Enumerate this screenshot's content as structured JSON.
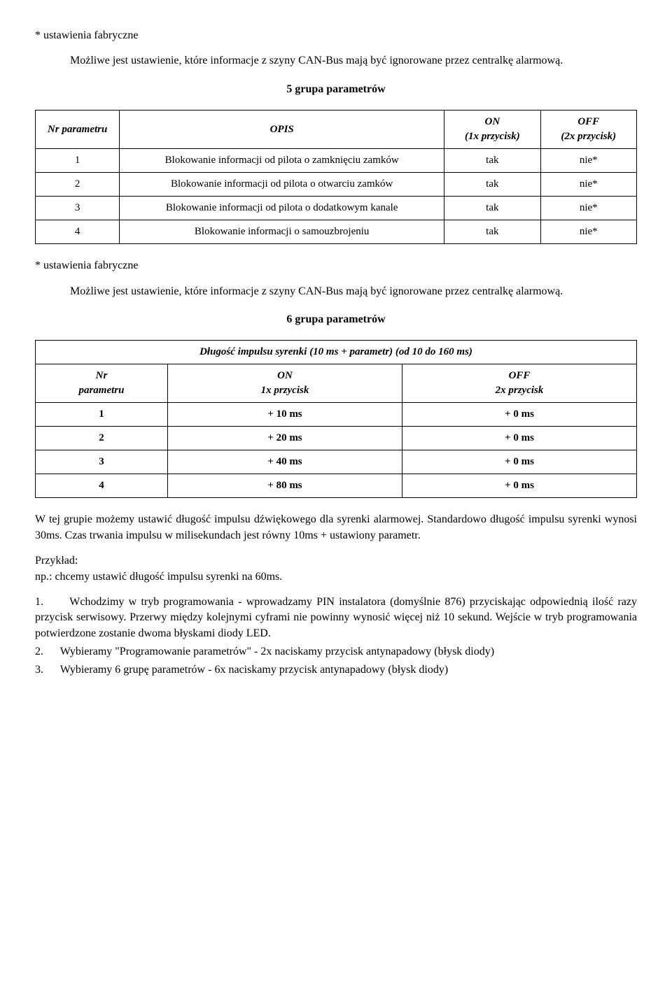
{
  "intro": {
    "fact_settings": "* ustawienia fabryczne",
    "possible": "Możliwe jest ustawienie, które informacje z szyny CAN-Bus mają być ignorowane przez centralkę alarmową."
  },
  "group5": {
    "title": "5 grupa parametrów",
    "header": {
      "nr": "Nr parametru",
      "opis": "OPIS",
      "on": "ON",
      "on_sub": "(1x przycisk)",
      "off": "OFF",
      "off_sub": "(2x przycisk)"
    },
    "rows": [
      {
        "nr": "1",
        "opis": "Blokowanie informacji od pilota o zamknięciu zamków",
        "on": "tak",
        "off": "nie*"
      },
      {
        "nr": "2",
        "opis": "Blokowanie informacji od pilota o otwarciu zamków",
        "on": "tak",
        "off": "nie*"
      },
      {
        "nr": "3",
        "opis": "Blokowanie informacji od pilota o dodatkowym kanale",
        "on": "tak",
        "off": "nie*"
      },
      {
        "nr": "4",
        "opis": "Blokowanie informacji o samouzbrojeniu",
        "on": "tak",
        "off": "nie*"
      }
    ]
  },
  "group6": {
    "title": "6 grupa parametrów",
    "caption": "Długość impulsu syrenki (10 ms + parametr) (od 10 do 160 ms)",
    "header": {
      "nr1": "Nr",
      "nr2": "parametru",
      "on1": "ON",
      "on2": "1x przycisk",
      "off1": "OFF",
      "off2": "2x przycisk"
    },
    "rows": [
      {
        "nr": "1",
        "on": "+ 10 ms",
        "off": "+ 0 ms"
      },
      {
        "nr": "2",
        "on": "+ 20 ms",
        "off": "+ 0 ms"
      },
      {
        "nr": "3",
        "on": "+ 40 ms",
        "off": "+ 0 ms"
      },
      {
        "nr": "4",
        "on": "+ 80 ms",
        "off": "+ 0 ms"
      }
    ]
  },
  "para1": "W tej grupie możemy ustawić długość impulsu dźwiękowego dla syrenki alarmowej. Standardowo długość impulsu syrenki wynosi 30ms. Czas trwania impulsu w milisekundach jest równy 10ms + ustawiony parametr.",
  "example_label": "Przykład:",
  "example_text": "np.: chcemy ustawić długość impulsu syrenki na 60ms.",
  "steps": {
    "s1": "1.      Wchodzimy w tryb programowania - wprowadzamy PIN instalatora (domyślnie 876) przyciskając odpowiednią ilość razy przycisk serwisowy. Przerwy między kolejnymi cyframi nie powinny wynosić więcej niż 10 sekund. Wejście w tryb programowania potwierdzone zostanie dwoma błyskami diody LED.",
    "s2": "2.      Wybieramy \"Programowanie parametrów\" - 2x naciskamy przycisk antynapadowy (błysk diody)",
    "s3": "3.      Wybieramy 6 grupę parametrów - 6x naciskamy przycisk antynapadowy (błysk diody)"
  },
  "style": {
    "col_widths_g5": [
      "14%",
      "54%",
      "16%",
      "16%"
    ],
    "col_widths_g6": [
      "22%",
      "39%",
      "39%"
    ]
  }
}
